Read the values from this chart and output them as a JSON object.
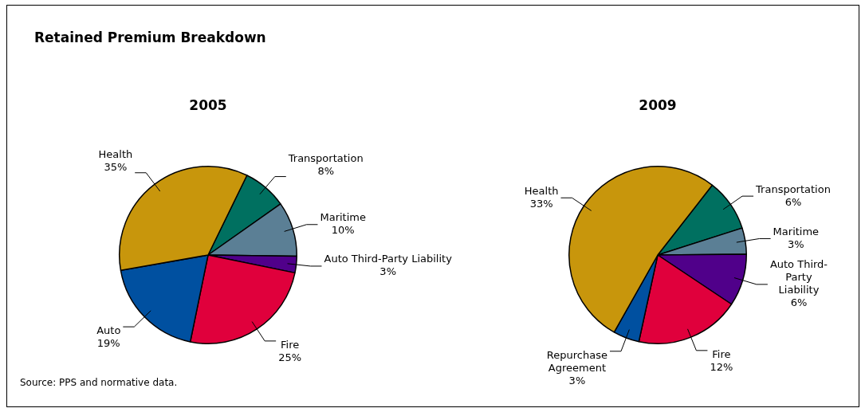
{
  "chart_data": [
    {
      "type": "pie",
      "title": "Retained Premium Breakdown",
      "subtitle": "2005",
      "categories": [
        "Transportation",
        "Maritime",
        "Auto Third-Party Liability",
        "Fire",
        "Auto",
        "Health"
      ],
      "values": [
        8,
        10,
        3,
        25,
        19,
        35
      ],
      "value_labels": [
        "8%",
        "10%",
        "3%",
        "25%",
        "19%",
        "35%"
      ],
      "colors": [
        "#007060",
        "#5b7f95",
        "#50008a",
        "#e0003c",
        "#0050a0",
        "#c8960c"
      ],
      "legend": false,
      "annotations": [
        "Source:  PPS and normative data."
      ]
    },
    {
      "type": "pie",
      "title": "2009",
      "categories": [
        "Transportation",
        "Maritime",
        "Auto Third-Party Liability",
        "Fire",
        "Repurchase Agreement",
        "Health"
      ],
      "values": [
        6,
        3,
        6,
        12,
        3,
        33
      ],
      "value_labels": [
        "6%",
        "3%",
        "6%",
        "12%",
        "3%",
        "33%"
      ],
      "colors": [
        "#007060",
        "#5b7f95",
        "#50008a",
        "#e0003c",
        "#0050a0",
        "#c8960c"
      ],
      "legend": false
    }
  ]
}
